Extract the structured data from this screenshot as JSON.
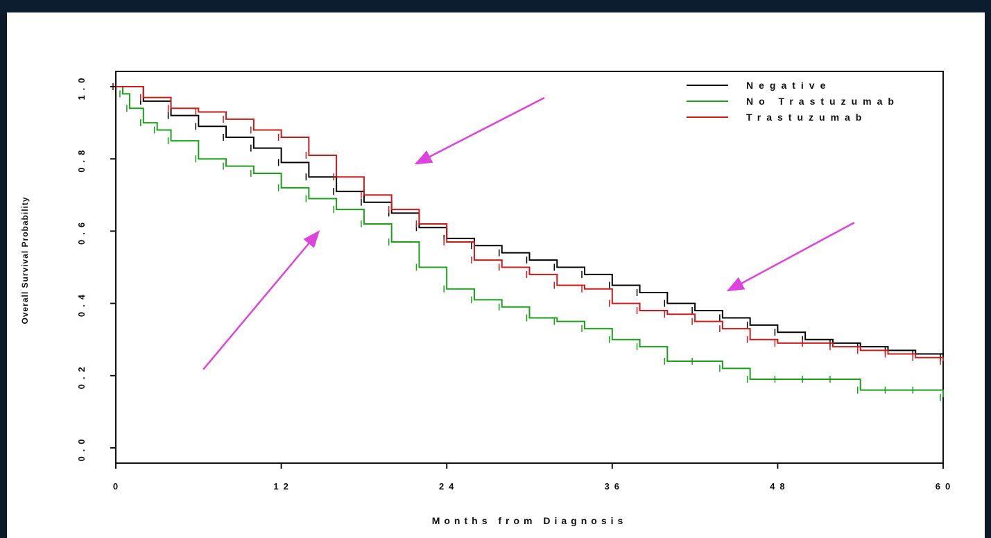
{
  "chart_data": {
    "type": "line",
    "title": "",
    "xlabel": "Months from Diagnosis",
    "ylabel": "Overall Survival Probability",
    "xlim": [
      0,
      60
    ],
    "ylim": [
      0,
      1
    ],
    "x_ticks": [
      0,
      12,
      24,
      36,
      48,
      60
    ],
    "x_tick_labels": [
      "0",
      "12",
      "24",
      "36",
      "48",
      "60"
    ],
    "y_ticks": [
      0.0,
      0.2,
      0.4,
      0.6,
      0.8,
      1.0
    ],
    "y_tick_labels": [
      "0.0",
      "0.2",
      "0.4",
      "0.6",
      "0.8",
      "1.0"
    ],
    "legend_position": "top-right",
    "series": [
      {
        "name": "Negative",
        "color": "#000000",
        "x": [
          0,
          2,
          4,
          6,
          8,
          10,
          12,
          14,
          16,
          18,
          20,
          22,
          24,
          26,
          28,
          30,
          32,
          34,
          36,
          38,
          40,
          42,
          44,
          46,
          48,
          50,
          52,
          54,
          56,
          58,
          60
        ],
        "y": [
          1.0,
          0.96,
          0.92,
          0.89,
          0.86,
          0.83,
          0.79,
          0.75,
          0.71,
          0.68,
          0.65,
          0.61,
          0.58,
          0.56,
          0.54,
          0.52,
          0.5,
          0.48,
          0.45,
          0.43,
          0.4,
          0.38,
          0.36,
          0.34,
          0.32,
          0.3,
          0.29,
          0.28,
          0.27,
          0.26,
          0.25
        ]
      },
      {
        "name": "No Trastuzumab",
        "color": "#1aa01a",
        "x": [
          0,
          0.5,
          1,
          2,
          3,
          4,
          6,
          8,
          10,
          12,
          14,
          16,
          18,
          20,
          22,
          24,
          26,
          28,
          30,
          32,
          34,
          36,
          38,
          40,
          42,
          44,
          46,
          48,
          50,
          52,
          54,
          56,
          58,
          60
        ],
        "y": [
          1.0,
          0.98,
          0.94,
          0.9,
          0.88,
          0.85,
          0.8,
          0.78,
          0.76,
          0.72,
          0.69,
          0.66,
          0.62,
          0.57,
          0.5,
          0.44,
          0.41,
          0.39,
          0.36,
          0.35,
          0.33,
          0.3,
          0.28,
          0.24,
          0.24,
          0.22,
          0.19,
          0.19,
          0.19,
          0.19,
          0.16,
          0.16,
          0.16,
          0.14
        ]
      },
      {
        "name": "Trastuzumab",
        "color": "#cc1a1a",
        "x": [
          0,
          2,
          4,
          6,
          8,
          10,
          12,
          14,
          16,
          18,
          20,
          22,
          24,
          26,
          28,
          30,
          32,
          34,
          36,
          38,
          40,
          42,
          44,
          46,
          48,
          50,
          52,
          54,
          56,
          58,
          60
        ],
        "y": [
          1.0,
          0.97,
          0.94,
          0.93,
          0.91,
          0.88,
          0.86,
          0.81,
          0.75,
          0.7,
          0.66,
          0.62,
          0.57,
          0.52,
          0.5,
          0.48,
          0.45,
          0.44,
          0.4,
          0.38,
          0.37,
          0.35,
          0.33,
          0.3,
          0.29,
          0.29,
          0.28,
          0.27,
          0.26,
          0.25,
          0.24
        ]
      }
    ]
  }
}
